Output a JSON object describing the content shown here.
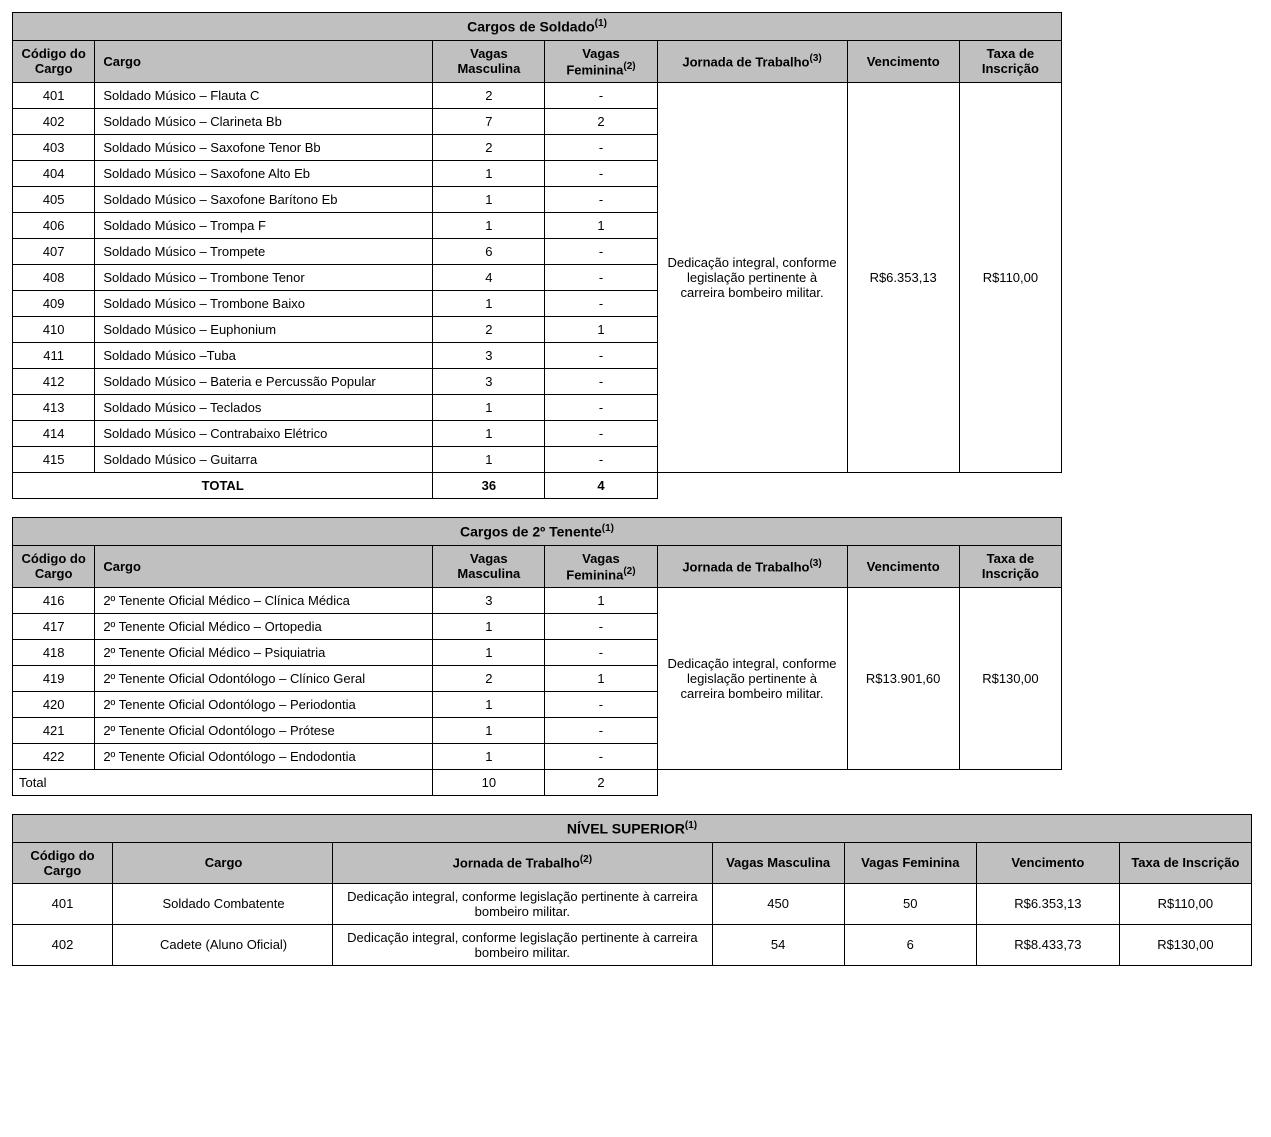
{
  "table1": {
    "title": "Cargos de Soldado",
    "title_sup": "(1)",
    "headers": {
      "code": "Código do Cargo",
      "cargo": "Cargo",
      "vm": "Vagas Masculina",
      "vf_pre": "Vagas Feminina",
      "vf_sup": "(2)",
      "jorn_pre": "Jornada de Trabalho",
      "jorn_sup": "(3)",
      "venc": "Vencimento",
      "taxa": "Taxa de Inscrição"
    },
    "jornada": "Dedicação integral, conforme legislação pertinente à carreira bombeiro militar.",
    "vencimento": "R$6.353,13",
    "taxa": "R$110,00",
    "rows": [
      {
        "code": "401",
        "cargo": "Soldado Músico – Flauta C",
        "vm": "2",
        "vf": "-"
      },
      {
        "code": "402",
        "cargo": "Soldado Músico – Clarineta Bb",
        "vm": "7",
        "vf": "2"
      },
      {
        "code": "403",
        "cargo": "Soldado Músico – Saxofone Tenor Bb",
        "vm": "2",
        "vf": "-"
      },
      {
        "code": "404",
        "cargo": "Soldado Músico – Saxofone Alto Eb",
        "vm": "1",
        "vf": "-"
      },
      {
        "code": "405",
        "cargo": "Soldado Músico – Saxofone Barítono Eb",
        "vm": "1",
        "vf": "-"
      },
      {
        "code": "406",
        "cargo": "Soldado Músico – Trompa F",
        "vm": "1",
        "vf": "1"
      },
      {
        "code": "407",
        "cargo": "Soldado Músico – Trompete",
        "vm": "6",
        "vf": "-"
      },
      {
        "code": "408",
        "cargo": "Soldado Músico – Trombone Tenor",
        "vm": "4",
        "vf": "-"
      },
      {
        "code": "409",
        "cargo": "Soldado Músico – Trombone Baixo",
        "vm": "1",
        "vf": "-"
      },
      {
        "code": "410",
        "cargo": "Soldado Músico – Euphonium",
        "vm": "2",
        "vf": "1"
      },
      {
        "code": "411",
        "cargo": "Soldado Músico –Tuba",
        "vm": "3",
        "vf": "-"
      },
      {
        "code": "412",
        "cargo": "Soldado Músico – Bateria e Percussão Popular",
        "vm": "3",
        "vf": "-"
      },
      {
        "code": "413",
        "cargo": "Soldado Músico – Teclados",
        "vm": "1",
        "vf": "-"
      },
      {
        "code": "414",
        "cargo": "Soldado Músico – Contrabaixo Elétrico",
        "vm": "1",
        "vf": "-"
      },
      {
        "code": "415",
        "cargo": "Soldado Músico – Guitarra",
        "vm": "1",
        "vf": "-"
      }
    ],
    "total_label": "TOTAL",
    "total_vm": "36",
    "total_vf": "4"
  },
  "table2": {
    "title": "Cargos de 2º Tenente",
    "title_sup": "(1)",
    "headers": {
      "code": "Código do Cargo",
      "cargo": "Cargo",
      "vm": "Vagas Masculina",
      "vf_pre": "Vagas Feminina",
      "vf_sup": "(2)",
      "jorn_pre": "Jornada de Trabalho",
      "jorn_sup": "(3)",
      "venc": "Vencimento",
      "taxa": "Taxa de Inscrição"
    },
    "jornada": "Dedicação integral, conforme legislação pertinente à carreira bombeiro militar.",
    "vencimento": "R$13.901,60",
    "taxa": "R$130,00",
    "rows": [
      {
        "code": "416",
        "cargo": "2º Tenente Oficial Médico – Clínica Médica",
        "vm": "3",
        "vf": "1"
      },
      {
        "code": "417",
        "cargo": "2º Tenente Oficial Médico – Ortopedia",
        "vm": "1",
        "vf": "-"
      },
      {
        "code": "418",
        "cargo": "2º Tenente Oficial Médico – Psiquiatria",
        "vm": "1",
        "vf": "-"
      },
      {
        "code": "419",
        "cargo": "2º Tenente Oficial Odontólogo – Clínico Geral",
        "vm": "2",
        "vf": "1"
      },
      {
        "code": "420",
        "cargo": "2º Tenente Oficial Odontólogo – Periodontia",
        "vm": "1",
        "vf": "-"
      },
      {
        "code": "421",
        "cargo": "2º Tenente Oficial Odontólogo – Prótese",
        "vm": "1",
        "vf": "-"
      },
      {
        "code": "422",
        "cargo": "2º Tenente Oficial Odontólogo – Endodontia",
        "vm": "1",
        "vf": "-"
      }
    ],
    "total_label": "Total",
    "total_vm": "10",
    "total_vf": "2"
  },
  "table3": {
    "title": "NÍVEL SUPERIOR",
    "title_sup": "(1)",
    "headers": {
      "code": "Código do Cargo",
      "cargo": "Cargo",
      "jorn_pre": "Jornada de Trabalho",
      "jorn_sup": "(2)",
      "vm": "Vagas Masculina",
      "vf": "Vagas Feminina",
      "venc": "Vencimento",
      "taxa": "Taxa de Inscrição"
    },
    "rows": [
      {
        "code": "401",
        "cargo": "Soldado Combatente",
        "jorn": "Dedicação integral, conforme legislação pertinente à carreira bombeiro militar.",
        "vm": "450",
        "vf": "50",
        "venc": "R$6.353,13",
        "taxa": "R$110,00"
      },
      {
        "code": "402",
        "cargo": "Cadete (Aluno Oficial)",
        "jorn": "Dedicação integral, conforme legislação pertinente à carreira bombeiro militar.",
        "vm": "54",
        "vf": "6",
        "venc": "R$8.433,73",
        "taxa": "R$130,00"
      }
    ]
  }
}
